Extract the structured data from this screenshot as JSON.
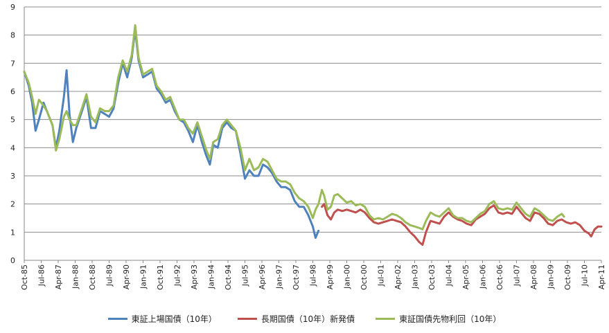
{
  "chart_data": {
    "type": "line",
    "ylim": [
      0,
      9
    ],
    "yticks": [
      0,
      1,
      2,
      3,
      4,
      5,
      6,
      7,
      8,
      9
    ],
    "xlim": [
      1985.75,
      2011.25
    ],
    "x_tick_labels": [
      {
        "label": "Oct-85",
        "x": 1985.75
      },
      {
        "label": "Jul-86",
        "x": 1986.5
      },
      {
        "label": "Apr-87",
        "x": 1987.25
      },
      {
        "label": "Jan-88",
        "x": 1988.0
      },
      {
        "label": "Oct-88",
        "x": 1988.75
      },
      {
        "label": "Jul-89",
        "x": 1989.5
      },
      {
        "label": "Apr-90",
        "x": 1990.25
      },
      {
        "label": "Jan-91",
        "x": 1991.0
      },
      {
        "label": "Oct-91",
        "x": 1991.75
      },
      {
        "label": "Jul-92",
        "x": 1992.5
      },
      {
        "label": "Apr-93",
        "x": 1993.25
      },
      {
        "label": "Jan-94",
        "x": 1994.0
      },
      {
        "label": "Oct-94",
        "x": 1994.75
      },
      {
        "label": "Jul-95",
        "x": 1995.5
      },
      {
        "label": "Apr-96",
        "x": 1996.25
      },
      {
        "label": "Jan-97",
        "x": 1997.0
      },
      {
        "label": "Oct-97",
        "x": 1997.75
      },
      {
        "label": "Jul-98",
        "x": 1998.5
      },
      {
        "label": "Apr-99",
        "x": 1999.25
      },
      {
        "label": "Jan-00",
        "x": 2000.0
      },
      {
        "label": "Oct-00",
        "x": 2000.75
      },
      {
        "label": "Jul-01",
        "x": 2001.5
      },
      {
        "label": "Apr-02",
        "x": 2002.25
      },
      {
        "label": "Jan-03",
        "x": 2003.0
      },
      {
        "label": "Oct-03",
        "x": 2003.75
      },
      {
        "label": "Jul-04",
        "x": 2004.5
      },
      {
        "label": "Apr-05",
        "x": 2005.25
      },
      {
        "label": "Jan-06",
        "x": 2006.0
      },
      {
        "label": "Oct-06",
        "x": 2006.75
      },
      {
        "label": "Jul-07",
        "x": 2007.5
      },
      {
        "label": "Apr-08",
        "x": 2008.25
      },
      {
        "label": "Jan-09",
        "x": 2009.0
      },
      {
        "label": "Oct-09",
        "x": 2009.75
      },
      {
        "label": "Jul-10",
        "x": 2010.5
      },
      {
        "label": "Apr-11",
        "x": 2011.25
      }
    ],
    "grid": true,
    "legend_position": "bottom",
    "series": [
      {
        "name": "東証上場国債（10年）",
        "color": "#4f81bd",
        "points": [
          [
            1985.75,
            6.7
          ],
          [
            1985.95,
            6.2
          ],
          [
            1986.1,
            5.6
          ],
          [
            1986.25,
            4.6
          ],
          [
            1986.4,
            5.0
          ],
          [
            1986.6,
            5.6
          ],
          [
            1986.75,
            5.3
          ],
          [
            1987.0,
            4.8
          ],
          [
            1987.15,
            4.0
          ],
          [
            1987.3,
            4.6
          ],
          [
            1987.5,
            5.8
          ],
          [
            1987.62,
            6.75
          ],
          [
            1987.75,
            5.2
          ],
          [
            1987.9,
            4.2
          ],
          [
            1988.05,
            4.7
          ],
          [
            1988.3,
            5.3
          ],
          [
            1988.5,
            5.8
          ],
          [
            1988.7,
            4.7
          ],
          [
            1988.9,
            4.7
          ],
          [
            1989.1,
            5.3
          ],
          [
            1989.3,
            5.2
          ],
          [
            1989.5,
            5.1
          ],
          [
            1989.7,
            5.4
          ],
          [
            1989.9,
            6.3
          ],
          [
            1990.1,
            7.0
          ],
          [
            1990.3,
            6.5
          ],
          [
            1990.5,
            7.2
          ],
          [
            1990.65,
            8.2
          ],
          [
            1990.8,
            7.1
          ],
          [
            1991.0,
            6.5
          ],
          [
            1991.2,
            6.6
          ],
          [
            1991.4,
            6.7
          ],
          [
            1991.6,
            6.1
          ],
          [
            1991.8,
            5.9
          ],
          [
            1992.0,
            5.6
          ],
          [
            1992.2,
            5.7
          ],
          [
            1992.4,
            5.3
          ],
          [
            1992.6,
            5.0
          ],
          [
            1992.8,
            4.9
          ],
          [
            1993.0,
            4.6
          ],
          [
            1993.2,
            4.2
          ],
          [
            1993.4,
            4.8
          ],
          [
            1993.6,
            4.2
          ],
          [
            1993.8,
            3.7
          ],
          [
            1993.95,
            3.4
          ],
          [
            1994.1,
            4.1
          ],
          [
            1994.3,
            4.0
          ],
          [
            1994.5,
            4.7
          ],
          [
            1994.7,
            4.9
          ],
          [
            1994.9,
            4.7
          ],
          [
            1995.1,
            4.6
          ],
          [
            1995.3,
            3.8
          ],
          [
            1995.5,
            2.9
          ],
          [
            1995.7,
            3.2
          ],
          [
            1995.9,
            3.0
          ],
          [
            1996.1,
            3.0
          ],
          [
            1996.3,
            3.4
          ],
          [
            1996.5,
            3.3
          ],
          [
            1996.7,
            3.1
          ],
          [
            1996.9,
            2.8
          ],
          [
            1997.1,
            2.6
          ],
          [
            1997.3,
            2.6
          ],
          [
            1997.5,
            2.5
          ],
          [
            1997.7,
            2.1
          ],
          [
            1997.9,
            1.9
          ],
          [
            1998.1,
            1.9
          ],
          [
            1998.3,
            1.6
          ],
          [
            1998.5,
            1.2
          ],
          [
            1998.62,
            0.8
          ],
          [
            1998.75,
            1.05
          ]
        ]
      },
      {
        "name": "長期国債（10年）新発債",
        "color": "#c0504d",
        "points": [
          [
            1998.9,
            1.9
          ],
          [
            1999.0,
            2.0
          ],
          [
            1999.15,
            1.6
          ],
          [
            1999.3,
            1.45
          ],
          [
            1999.45,
            1.7
          ],
          [
            1999.6,
            1.8
          ],
          [
            1999.8,
            1.75
          ],
          [
            2000.0,
            1.8
          ],
          [
            2000.2,
            1.75
          ],
          [
            2000.4,
            1.7
          ],
          [
            2000.6,
            1.8
          ],
          [
            2000.8,
            1.7
          ],
          [
            2001.0,
            1.5
          ],
          [
            2001.2,
            1.35
          ],
          [
            2001.4,
            1.3
          ],
          [
            2001.6,
            1.35
          ],
          [
            2001.8,
            1.4
          ],
          [
            2002.0,
            1.45
          ],
          [
            2002.2,
            1.4
          ],
          [
            2002.4,
            1.35
          ],
          [
            2002.6,
            1.2
          ],
          [
            2002.8,
            1.0
          ],
          [
            2003.0,
            0.85
          ],
          [
            2003.2,
            0.65
          ],
          [
            2003.35,
            0.55
          ],
          [
            2003.5,
            1.0
          ],
          [
            2003.7,
            1.4
          ],
          [
            2003.9,
            1.35
          ],
          [
            2004.1,
            1.3
          ],
          [
            2004.3,
            1.55
          ],
          [
            2004.5,
            1.7
          ],
          [
            2004.7,
            1.55
          ],
          [
            2004.9,
            1.45
          ],
          [
            2005.1,
            1.4
          ],
          [
            2005.3,
            1.3
          ],
          [
            2005.5,
            1.25
          ],
          [
            2005.7,
            1.45
          ],
          [
            2005.9,
            1.55
          ],
          [
            2006.1,
            1.65
          ],
          [
            2006.3,
            1.85
          ],
          [
            2006.5,
            1.95
          ],
          [
            2006.7,
            1.7
          ],
          [
            2006.9,
            1.65
          ],
          [
            2007.1,
            1.7
          ],
          [
            2007.3,
            1.65
          ],
          [
            2007.5,
            1.9
          ],
          [
            2007.7,
            1.7
          ],
          [
            2007.9,
            1.5
          ],
          [
            2008.1,
            1.4
          ],
          [
            2008.3,
            1.7
          ],
          [
            2008.5,
            1.65
          ],
          [
            2008.7,
            1.5
          ],
          [
            2008.9,
            1.3
          ],
          [
            2009.1,
            1.25
          ],
          [
            2009.3,
            1.4
          ],
          [
            2009.5,
            1.45
          ],
          [
            2009.7,
            1.35
          ],
          [
            2009.9,
            1.3
          ],
          [
            2010.1,
            1.35
          ],
          [
            2010.3,
            1.25
          ],
          [
            2010.5,
            1.05
          ],
          [
            2010.7,
            0.95
          ],
          [
            2010.8,
            0.85
          ],
          [
            2010.95,
            1.1
          ],
          [
            2011.1,
            1.2
          ],
          [
            2011.25,
            1.2
          ]
        ]
      },
      {
        "name": "東証国債先物利回（10年）",
        "color": "#9bbb59",
        "points": [
          [
            1985.75,
            6.7
          ],
          [
            1985.95,
            6.3
          ],
          [
            1986.1,
            5.8
          ],
          [
            1986.25,
            5.2
          ],
          [
            1986.4,
            5.7
          ],
          [
            1986.6,
            5.5
          ],
          [
            1986.75,
            5.3
          ],
          [
            1987.0,
            4.8
          ],
          [
            1987.15,
            3.9
          ],
          [
            1987.3,
            4.3
          ],
          [
            1987.5,
            5.1
          ],
          [
            1987.62,
            5.3
          ],
          [
            1987.75,
            5.0
          ],
          [
            1987.9,
            4.8
          ],
          [
            1988.05,
            4.8
          ],
          [
            1988.3,
            5.4
          ],
          [
            1988.5,
            5.9
          ],
          [
            1988.7,
            5.1
          ],
          [
            1988.9,
            4.9
          ],
          [
            1989.1,
            5.4
          ],
          [
            1989.3,
            5.3
          ],
          [
            1989.5,
            5.3
          ],
          [
            1989.7,
            5.5
          ],
          [
            1989.9,
            6.5
          ],
          [
            1990.1,
            7.1
          ],
          [
            1990.3,
            6.7
          ],
          [
            1990.5,
            7.3
          ],
          [
            1990.65,
            8.35
          ],
          [
            1990.8,
            7.2
          ],
          [
            1991.0,
            6.6
          ],
          [
            1991.2,
            6.7
          ],
          [
            1991.4,
            6.8
          ],
          [
            1991.6,
            6.2
          ],
          [
            1991.8,
            6.0
          ],
          [
            1992.0,
            5.7
          ],
          [
            1992.2,
            5.8
          ],
          [
            1992.4,
            5.4
          ],
          [
            1992.6,
            5.0
          ],
          [
            1992.8,
            5.0
          ],
          [
            1993.0,
            4.7
          ],
          [
            1993.2,
            4.5
          ],
          [
            1993.4,
            4.9
          ],
          [
            1993.6,
            4.4
          ],
          [
            1993.8,
            3.9
          ],
          [
            1993.95,
            3.6
          ],
          [
            1994.1,
            4.2
          ],
          [
            1994.3,
            4.3
          ],
          [
            1994.5,
            4.8
          ],
          [
            1994.7,
            5.0
          ],
          [
            1994.9,
            4.8
          ],
          [
            1995.1,
            4.6
          ],
          [
            1995.3,
            4.0
          ],
          [
            1995.5,
            3.2
          ],
          [
            1995.7,
            3.6
          ],
          [
            1995.9,
            3.2
          ],
          [
            1996.1,
            3.3
          ],
          [
            1996.3,
            3.6
          ],
          [
            1996.5,
            3.5
          ],
          [
            1996.7,
            3.2
          ],
          [
            1996.9,
            2.9
          ],
          [
            1997.1,
            2.8
          ],
          [
            1997.3,
            2.8
          ],
          [
            1997.5,
            2.7
          ],
          [
            1997.7,
            2.4
          ],
          [
            1997.9,
            2.2
          ],
          [
            1998.1,
            2.1
          ],
          [
            1998.3,
            1.9
          ],
          [
            1998.5,
            1.5
          ],
          [
            1998.62,
            1.8
          ],
          [
            1998.75,
            2.0
          ],
          [
            1998.9,
            2.5
          ],
          [
            1999.0,
            2.3
          ],
          [
            1999.15,
            1.8
          ],
          [
            1999.3,
            1.9
          ],
          [
            1999.45,
            2.3
          ],
          [
            1999.6,
            2.35
          ],
          [
            1999.8,
            2.2
          ],
          [
            2000.0,
            2.05
          ],
          [
            2000.2,
            2.1
          ],
          [
            2000.4,
            1.95
          ],
          [
            2000.6,
            2.0
          ],
          [
            2000.8,
            1.9
          ],
          [
            2001.0,
            1.6
          ],
          [
            2001.2,
            1.45
          ],
          [
            2001.4,
            1.5
          ],
          [
            2001.6,
            1.45
          ],
          [
            2001.8,
            1.55
          ],
          [
            2002.0,
            1.65
          ],
          [
            2002.2,
            1.6
          ],
          [
            2002.4,
            1.5
          ],
          [
            2002.6,
            1.35
          ],
          [
            2002.8,
            1.25
          ],
          [
            2003.0,
            1.2
          ],
          [
            2003.2,
            1.15
          ],
          [
            2003.35,
            1.1
          ],
          [
            2003.5,
            1.4
          ],
          [
            2003.7,
            1.7
          ],
          [
            2003.9,
            1.6
          ],
          [
            2004.1,
            1.55
          ],
          [
            2004.3,
            1.7
          ],
          [
            2004.5,
            1.85
          ],
          [
            2004.7,
            1.6
          ],
          [
            2004.9,
            1.5
          ],
          [
            2005.1,
            1.5
          ],
          [
            2005.3,
            1.4
          ],
          [
            2005.5,
            1.35
          ],
          [
            2005.7,
            1.5
          ],
          [
            2005.9,
            1.65
          ],
          [
            2006.1,
            1.75
          ],
          [
            2006.3,
            2.0
          ],
          [
            2006.5,
            2.1
          ],
          [
            2006.7,
            1.85
          ],
          [
            2006.9,
            1.8
          ],
          [
            2007.1,
            1.85
          ],
          [
            2007.3,
            1.8
          ],
          [
            2007.5,
            2.05
          ],
          [
            2007.7,
            1.85
          ],
          [
            2007.9,
            1.65
          ],
          [
            2008.1,
            1.55
          ],
          [
            2008.3,
            1.85
          ],
          [
            2008.5,
            1.75
          ],
          [
            2008.7,
            1.6
          ],
          [
            2008.9,
            1.45
          ],
          [
            2009.1,
            1.4
          ],
          [
            2009.3,
            1.55
          ],
          [
            2009.5,
            1.65
          ],
          [
            2009.6,
            1.55
          ]
        ]
      }
    ]
  }
}
